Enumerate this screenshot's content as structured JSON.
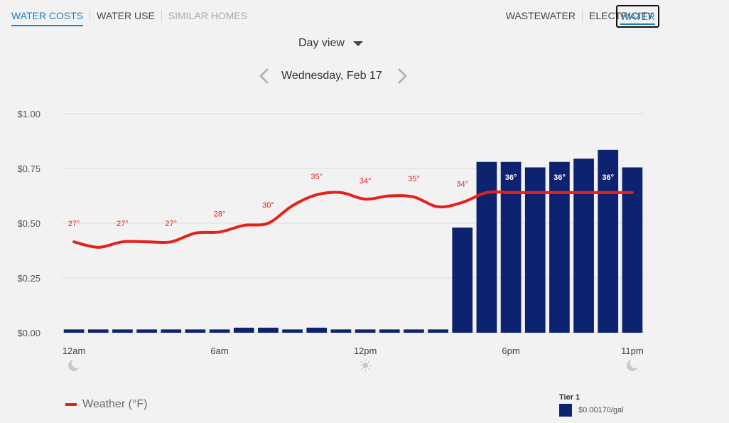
{
  "tabs_left": [
    {
      "label": "WATER COSTS",
      "state": "active"
    },
    {
      "label": "WATER USE",
      "state": "normal"
    },
    {
      "label": "SIMILAR HOMES",
      "state": "muted"
    }
  ],
  "tabs_right": [
    {
      "label": "WASTEWATER"
    },
    {
      "label": "ELECTRICITY"
    }
  ],
  "utility_active": "WATER",
  "view_select": "Day view",
  "date_label": "Wednesday, Feb 17",
  "colors": {
    "bar": "#0e2370",
    "weather": "#e8201a",
    "accent": "#1d7fbf",
    "grid": "#dcdcdc"
  },
  "icons": [
    "moon-icon",
    "sun-icon",
    "moon-icon",
    "chevron-left-icon",
    "chevron-right-icon",
    "caret-down-icon"
  ],
  "legend": {
    "weather_label": "Weather (°F)"
  },
  "tier": {
    "title": "Tier 1",
    "rate": "$0.00170/gal"
  },
  "chart_data": {
    "type": "bar",
    "title": "",
    "xlabel": "",
    "ylabel": "",
    "ylim": [
      0,
      1.0
    ],
    "yticks": [
      "$0.00",
      "$0.25",
      "$0.50",
      "$0.75",
      "$1.00"
    ],
    "ytick_values": [
      0,
      0.25,
      0.5,
      0.75,
      1.0
    ],
    "hours": [
      "12am",
      "1am",
      "2am",
      "3am",
      "4am",
      "5am",
      "6am",
      "7am",
      "8am",
      "9am",
      "10am",
      "11am",
      "12pm",
      "1pm",
      "2pm",
      "3pm",
      "4pm",
      "5pm",
      "6pm",
      "7pm",
      "8pm",
      "9pm",
      "10pm",
      "11pm"
    ],
    "xtick_labels": [
      {
        "index": 0,
        "label": "12am"
      },
      {
        "index": 6,
        "label": "6am"
      },
      {
        "index": 12,
        "label": "12pm"
      },
      {
        "index": 18,
        "label": "6pm"
      },
      {
        "index": 23,
        "label": "11pm"
      }
    ],
    "time_icons": [
      {
        "index": 0,
        "icon": "moon-icon"
      },
      {
        "index": 12,
        "icon": "sun-icon"
      },
      {
        "index": 23,
        "icon": "moon-icon"
      }
    ],
    "series": [
      {
        "values": [
          0.015,
          0.015,
          0.015,
          0.015,
          0.015,
          0.015,
          0.015,
          0.023,
          0.023,
          0.015,
          0.023,
          0.015,
          0.015,
          0.015,
          0.015,
          0.015,
          0.48,
          0.78,
          0.78,
          0.755,
          0.78,
          0.795,
          0.835,
          0.755
        ]
      }
    ],
    "weather_line": {
      "values_dollar_axis": [
        0.415,
        0.39,
        0.415,
        0.415,
        0.415,
        0.455,
        0.46,
        0.49,
        0.5,
        0.58,
        0.63,
        0.64,
        0.61,
        0.625,
        0.62,
        0.575,
        0.595,
        0.64,
        0.64,
        0.64,
        0.64,
        0.64,
        0.64,
        0.64
      ],
      "labels": [
        {
          "index": 0,
          "text": "27°"
        },
        {
          "index": 2,
          "text": "27°"
        },
        {
          "index": 4,
          "text": "27°"
        },
        {
          "index": 6,
          "text": "28°"
        },
        {
          "index": 8,
          "text": "30°"
        },
        {
          "index": 10,
          "text": "35°"
        },
        {
          "index": 12,
          "text": "34°"
        },
        {
          "index": 14,
          "text": "35°"
        },
        {
          "index": 16,
          "text": "34°"
        },
        {
          "index": 18,
          "text": "36°"
        },
        {
          "index": 20,
          "text": "36°"
        },
        {
          "index": 22,
          "text": "36°"
        }
      ]
    },
    "grid": true
  }
}
